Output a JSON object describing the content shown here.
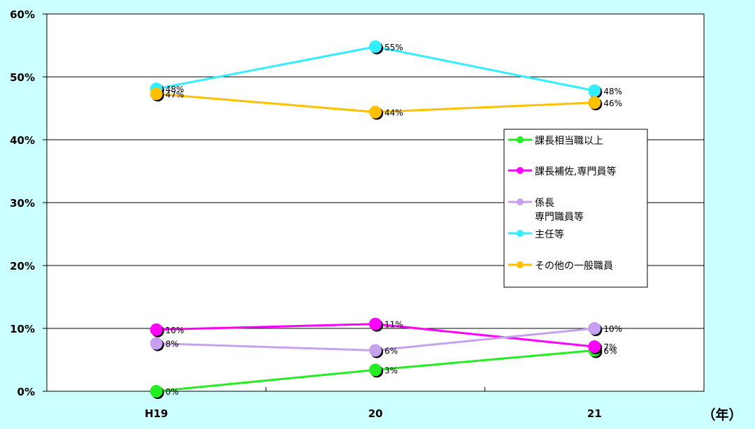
{
  "chart_data": {
    "type": "line",
    "categories": [
      "H19",
      "20",
      "21"
    ],
    "x_unit": "（年）",
    "ylim": [
      0,
      60
    ],
    "yticks": [
      0,
      10,
      20,
      30,
      40,
      50,
      60
    ],
    "ytick_labels": [
      "0%",
      "10%",
      "20%",
      "30%",
      "40%",
      "50%",
      "60%"
    ],
    "grid": true,
    "legend_position": "right",
    "series": [
      {
        "name": "課長相当職以上",
        "color": "#22ee22",
        "values": [
          0,
          3.4,
          6.5
        ],
        "labels": [
          "0%",
          "3%",
          "6%"
        ]
      },
      {
        "name": "課長補佐,専門員等",
        "color": "#ff00ff",
        "values": [
          9.8,
          10.7,
          7.1
        ],
        "labels": [
          "10%",
          "11%",
          "7%"
        ]
      },
      {
        "name": "係長\n専門職員等",
        "color": "#c8a0f0",
        "values": [
          7.6,
          6.5,
          10.0
        ],
        "labels": [
          "8%",
          "6%",
          "10%"
        ]
      },
      {
        "name": "主任等",
        "color": "#33eeff",
        "values": [
          48.1,
          54.8,
          47.8
        ],
        "labels": [
          "48%",
          "55%",
          "48%"
        ]
      },
      {
        "name": "その他の一般職員",
        "color": "#ffc000",
        "values": [
          47.3,
          44.4,
          45.9
        ],
        "labels": [
          "47%",
          "44%",
          "46%"
        ]
      }
    ]
  }
}
